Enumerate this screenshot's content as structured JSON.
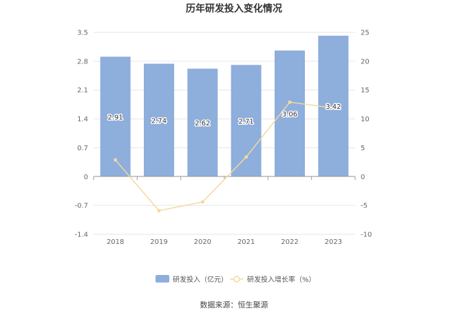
{
  "chart_data": {
    "type": "bar",
    "title": "历年研发投入变化情况",
    "categories": [
      "2018",
      "2019",
      "2020",
      "2021",
      "2022",
      "2023"
    ],
    "series": [
      {
        "name": "研发投入（亿元）",
        "type": "bar",
        "axis": "left",
        "color": "#8eaedc",
        "values": [
          2.91,
          2.74,
          2.62,
          2.71,
          3.06,
          3.42
        ],
        "labels": [
          "2.91",
          "2.74",
          "2.62",
          "2.71",
          "3.06",
          "3.42"
        ]
      },
      {
        "name": "研发投入增长率（%）",
        "type": "line",
        "axis": "right",
        "color": "#f5d8a0",
        "values": [
          2.9,
          -5.9,
          -4.4,
          3.4,
          12.9,
          11.9
        ]
      }
    ],
    "y_left": {
      "ylim": [
        -1.4,
        3.5
      ],
      "ticks": [
        "3.5",
        "2.8",
        "2.1",
        "1.4",
        "0.7",
        "0",
        "-0.7",
        "-1.4"
      ]
    },
    "y_right": {
      "ylim": [
        -10,
        25
      ],
      "ticks": [
        "25",
        "20",
        "15",
        "10",
        "5",
        "0",
        "-5",
        "-10"
      ]
    },
    "grid": true,
    "legend_position": "bottom"
  },
  "source": "数据来源：恒生聚源"
}
